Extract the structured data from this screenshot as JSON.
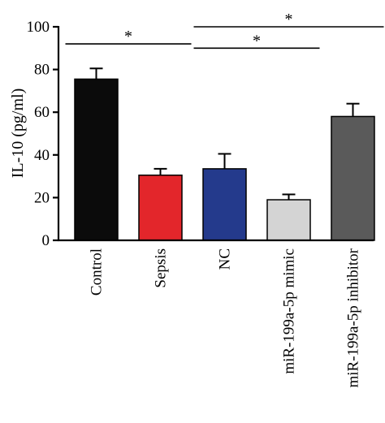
{
  "chart_data": {
    "type": "bar",
    "ylabel": "IL-10 (pg/ml)",
    "xlabel": "",
    "ylim": [
      0,
      100
    ],
    "yticks": [
      0,
      20,
      40,
      60,
      80,
      100
    ],
    "categories": [
      "Control",
      "Sepsis",
      "NC",
      "miR-199a-5p mimic",
      "miR-199a-5p inhibitor"
    ],
    "values": [
      75.5,
      30.5,
      33.5,
      19,
      58
    ],
    "errors": [
      5,
      3,
      7,
      2.5,
      6
    ],
    "colors": [
      "#0b0b0b",
      "#e3262b",
      "#243a8c",
      "#d4d4d4",
      "#5a5a5a"
    ],
    "significance": [
      {
        "from": 0,
        "to": 1,
        "y": 92,
        "label": "*"
      },
      {
        "from": 2,
        "to": 3,
        "y": 90,
        "label": "*"
      },
      {
        "from": 2,
        "to": 4,
        "y": 100,
        "label": "*"
      }
    ]
  }
}
